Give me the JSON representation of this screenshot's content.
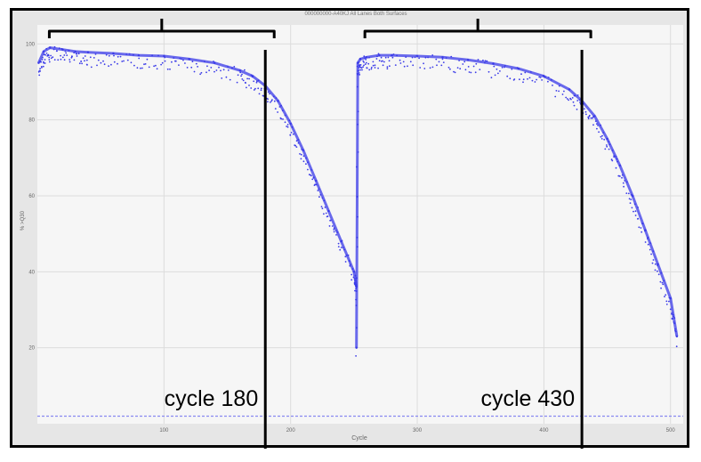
{
  "chart_data": {
    "type": "scatter",
    "title": "000000000-A40KJ All Lanes Both Surfaces",
    "xlabel": "Cycle",
    "ylabel": "% >Q30",
    "xlim": [
      0,
      510
    ],
    "ylim": [
      0,
      105
    ],
    "x_ticks": [
      "100",
      "200",
      "300",
      "400",
      "500"
    ],
    "y_ticks": [
      "100",
      "80",
      "60",
      "40",
      "20"
    ],
    "grid": true,
    "point_color": "#3a3ae8",
    "baseline": {
      "y": 2,
      "color": "#8a8af0"
    },
    "series": [
      {
        "x": [
          1,
          5,
          10,
          20,
          30,
          40,
          60,
          80,
          100,
          120,
          140,
          160,
          170,
          180,
          190,
          200,
          210,
          220,
          230,
          240,
          250,
          252
        ],
        "values": [
          95,
          98,
          99,
          98.5,
          98,
          97.8,
          97.5,
          97,
          96.8,
          96,
          95,
          93,
          91.5,
          89,
          85,
          79,
          72,
          64,
          56,
          48,
          40,
          36
        ]
      },
      {
        "x": [
          252,
          253,
          255,
          260,
          270,
          280,
          300,
          320,
          340,
          360,
          380,
          400,
          420,
          430,
          440,
          450,
          460,
          470,
          480,
          490,
          500,
          505
        ],
        "values": [
          20,
          95,
          96,
          96.5,
          97,
          97,
          96.8,
          96.5,
          95.8,
          94.8,
          93.5,
          91.5,
          88,
          85,
          81,
          75,
          68,
          60,
          51,
          42,
          33,
          23
        ]
      }
    ],
    "annotations": [
      {
        "text": "cycle 180",
        "x": 180
      },
      {
        "text": "cycle 430",
        "x": 430
      }
    ]
  }
}
